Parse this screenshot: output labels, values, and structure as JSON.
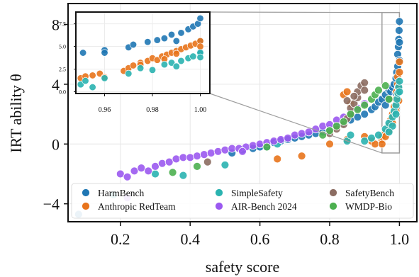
{
  "chart_data": {
    "type": "scatter",
    "xlabel": "safety score",
    "ylabel": "IRT ability θ",
    "xlim": [
      0.05,
      1.05
    ],
    "ylim": [
      -5.2,
      9.4
    ],
    "xticks": [
      0.2,
      0.4,
      0.6,
      0.8,
      1.0
    ],
    "xtick_labels": [
      "0.2",
      "0.4",
      "0.6",
      "0.8",
      "1.0"
    ],
    "yticks": [
      -4,
      0,
      4,
      8
    ],
    "ytick_labels": [
      "−4",
      "0",
      "4",
      "8"
    ],
    "grid": true,
    "legend": "bottom",
    "series": [
      {
        "name": "HarmBench",
        "color": "#1f77b4",
        "points": [
          [
            0.08,
            -4.7
          ],
          [
            0.52,
            -0.6
          ],
          [
            0.55,
            -0.4
          ],
          [
            0.58,
            -0.3
          ],
          [
            0.6,
            -0.2
          ],
          [
            0.62,
            -0.2
          ],
          [
            0.64,
            0.1
          ],
          [
            0.66,
            0.2
          ],
          [
            0.68,
            0.3
          ],
          [
            0.7,
            0.4
          ],
          [
            0.72,
            0.5
          ],
          [
            0.74,
            0.6
          ],
          [
            0.76,
            0.7
          ],
          [
            0.78,
            0.8
          ],
          [
            0.8,
            1.0
          ],
          [
            0.82,
            1.2
          ],
          [
            0.84,
            1.4
          ],
          [
            0.86,
            1.6
          ],
          [
            0.88,
            1.8
          ],
          [
            0.9,
            2.0
          ],
          [
            0.92,
            2.3
          ],
          [
            0.93,
            2.5
          ],
          [
            0.94,
            2.8
          ],
          [
            0.95,
            3.0
          ],
          [
            0.96,
            3.3
          ],
          [
            0.97,
            3.6
          ],
          [
            0.975,
            3.5
          ],
          [
            0.98,
            3.8
          ],
          [
            0.985,
            4.0
          ],
          [
            0.99,
            4.4
          ],
          [
            0.99,
            3.4
          ],
          [
            0.992,
            4.8
          ],
          [
            0.995,
            5.2
          ],
          [
            0.995,
            6.0
          ],
          [
            0.997,
            6.5
          ],
          [
            0.998,
            7.0
          ],
          [
            0.999,
            7.6
          ],
          [
            1.0,
            8.2
          ],
          [
            1.0,
            6.8
          ],
          [
            1.0,
            5.6
          ],
          [
            0.96,
            2.6
          ],
          [
            0.97,
            3.0
          ]
        ]
      },
      {
        "name": "Anthropic RedTeam",
        "color": "#e8741c",
        "points": [
          [
            0.65,
            -1.0
          ],
          [
            0.72,
            -0.8
          ],
          [
            0.8,
            0.0
          ],
          [
            0.85,
            0.3
          ],
          [
            0.9,
            0.5
          ],
          [
            0.92,
            0.2
          ],
          [
            0.93,
            0.0
          ],
          [
            0.95,
            0.3
          ],
          [
            0.95,
            0.5
          ],
          [
            0.96,
            0.8
          ],
          [
            0.97,
            1.2
          ],
          [
            0.975,
            1.6
          ],
          [
            0.98,
            2.0
          ],
          [
            0.985,
            2.5
          ],
          [
            0.99,
            3.0
          ],
          [
            0.99,
            2.2
          ],
          [
            0.992,
            3.5
          ],
          [
            0.995,
            4.0
          ],
          [
            0.995,
            4.5
          ],
          [
            0.997,
            3.8
          ],
          [
            0.998,
            2.9
          ],
          [
            1.0,
            5.5
          ],
          [
            1.0,
            4.8
          ],
          [
            0.98,
            1.4
          ],
          [
            0.97,
            0.9
          ],
          [
            0.84,
            3.3
          ],
          [
            0.85,
            3.5
          ],
          [
            0.86,
            2.7
          ],
          [
            0.96,
            0.5
          ],
          [
            0.95,
            0.0
          ]
        ]
      },
      {
        "name": "SimpleSafety",
        "color": "#2ab3b0",
        "points": [
          [
            0.18,
            -3.4
          ],
          [
            0.3,
            -2.0
          ],
          [
            0.38,
            -2.1
          ],
          [
            0.5,
            -1.4
          ],
          [
            0.65,
            0.0
          ],
          [
            0.85,
            0.2
          ],
          [
            0.86,
            0.6
          ],
          [
            0.9,
            0.2
          ],
          [
            0.92,
            0.4
          ],
          [
            0.94,
            0.6
          ],
          [
            0.96,
            1.0
          ],
          [
            0.97,
            1.4
          ],
          [
            0.98,
            1.8
          ],
          [
            0.985,
            2.2
          ],
          [
            0.99,
            2.6
          ],
          [
            0.993,
            3.0
          ],
          [
            0.996,
            3.4
          ],
          [
            0.998,
            3.8
          ],
          [
            1.0,
            4.2
          ],
          [
            1.0,
            3.5
          ],
          [
            0.99,
            2.0
          ],
          [
            0.98,
            1.2
          ],
          [
            0.97,
            0.8
          ]
        ]
      },
      {
        "name": "AIR-Bench 2024",
        "color": "#9b59f0",
        "points": [
          [
            0.2,
            -2.0
          ],
          [
            0.22,
            -2.2
          ],
          [
            0.24,
            -1.8
          ],
          [
            0.26,
            -1.6
          ],
          [
            0.28,
            -1.8
          ],
          [
            0.3,
            -1.5
          ],
          [
            0.32,
            -1.3
          ],
          [
            0.34,
            -1.2
          ],
          [
            0.36,
            -1.0
          ],
          [
            0.38,
            -0.9
          ],
          [
            0.4,
            -0.9
          ],
          [
            0.42,
            -0.8
          ],
          [
            0.44,
            -0.7
          ],
          [
            0.46,
            -0.6
          ],
          [
            0.48,
            -0.5
          ],
          [
            0.5,
            -0.4
          ],
          [
            0.52,
            -0.3
          ],
          [
            0.54,
            -0.3
          ],
          [
            0.56,
            -0.2
          ],
          [
            0.58,
            -0.1
          ],
          [
            0.6,
            0.0
          ],
          [
            0.62,
            0.1
          ],
          [
            0.64,
            0.2
          ],
          [
            0.66,
            0.3
          ],
          [
            0.68,
            0.4
          ],
          [
            0.7,
            0.6
          ],
          [
            0.72,
            0.7
          ],
          [
            0.74,
            0.8
          ],
          [
            0.76,
            1.0
          ],
          [
            0.78,
            1.2
          ],
          [
            0.8,
            1.3
          ],
          [
            0.82,
            1.6
          ],
          [
            0.84,
            1.8
          ],
          [
            0.86,
            2.1
          ],
          [
            0.88,
            2.4
          ],
          [
            0.9,
            2.7
          ],
          [
            0.22,
            -3.6
          ],
          [
            0.55,
            -0.5
          ]
        ]
      },
      {
        "name": "SafetyBench",
        "color": "#8c6d62",
        "points": [
          [
            0.45,
            -1.2
          ],
          [
            0.8,
            0.7
          ],
          [
            0.82,
            1.0
          ],
          [
            0.84,
            1.3
          ],
          [
            0.85,
            1.7
          ],
          [
            0.86,
            2.0
          ],
          [
            0.86,
            2.4
          ],
          [
            0.87,
            2.7
          ],
          [
            0.88,
            3.1
          ],
          [
            0.88,
            3.5
          ],
          [
            0.89,
            3.9
          ],
          [
            0.9,
            4.1
          ],
          [
            0.9,
            3.6
          ],
          [
            0.87,
            3.2
          ],
          [
            0.85,
            2.9
          ]
        ]
      },
      {
        "name": "WMDP-Bio",
        "color": "#4cb050",
        "points": [
          [
            0.35,
            -1.9
          ],
          [
            0.42,
            -1.5
          ],
          [
            0.62,
            -0.2
          ],
          [
            0.78,
            0.6
          ],
          [
            0.8,
            0.9
          ],
          [
            0.82,
            1.2
          ],
          [
            0.84,
            1.5
          ],
          [
            0.86,
            2.0
          ],
          [
            0.88,
            2.3
          ],
          [
            0.9,
            2.6
          ],
          [
            0.92,
            3.0
          ],
          [
            0.93,
            3.3
          ],
          [
            0.94,
            3.6
          ],
          [
            0.96,
            3.9
          ],
          [
            0.97,
            3.0
          ]
        ]
      }
    ],
    "inset": {
      "xlim": [
        0.948,
        1.004
      ],
      "ylim": [
        -0.2,
        8.8
      ],
      "xticks": [
        0.96,
        0.98,
        1.0
      ],
      "xtick_labels": [
        "0.96",
        "0.98",
        "1.00"
      ],
      "yticks": [
        0.0,
        2.5,
        5.0,
        7.5
      ],
      "ytick_labels": [
        "0.0",
        "2.5",
        "5.0",
        "7.5"
      ],
      "zoom_region": {
        "x": [
          0.95,
          1.0
        ],
        "y": [
          -0.6,
          8.8
        ]
      },
      "series": [
        {
          "name": "HarmBench",
          "points": [
            [
              0.951,
              4.3
            ],
            [
              0.96,
              4.6
            ],
            [
              0.96,
              4.3
            ],
            [
              0.97,
              4.9
            ],
            [
              0.972,
              5.2
            ],
            [
              0.978,
              5.5
            ],
            [
              0.982,
              5.7
            ],
            [
              0.985,
              5.9
            ],
            [
              0.988,
              6.3
            ],
            [
              0.99,
              5.6
            ],
            [
              0.992,
              6.5
            ],
            [
              0.995,
              6.9
            ],
            [
              0.997,
              7.2
            ],
            [
              0.999,
              7.5
            ],
            [
              1.0,
              8.1
            ],
            [
              1.0,
              5.6
            ],
            [
              1.0,
              4.4
            ]
          ]
        },
        {
          "name": "Anthropic RedTeam",
          "points": [
            [
              0.95,
              1.5
            ],
            [
              0.952,
              1.7
            ],
            [
              0.955,
              1.8
            ],
            [
              0.958,
              2.0
            ],
            [
              0.96,
              1.6
            ],
            [
              0.968,
              2.3
            ],
            [
              0.97,
              2.6
            ],
            [
              0.972,
              2.9
            ],
            [
              0.975,
              3.2
            ],
            [
              0.978,
              3.4
            ],
            [
              0.98,
              3.7
            ],
            [
              0.982,
              3.5
            ],
            [
              0.984,
              3.9
            ],
            [
              0.986,
              4.1
            ],
            [
              0.988,
              4.3
            ],
            [
              0.99,
              4.5
            ],
            [
              0.992,
              4.7
            ],
            [
              0.994,
              4.9
            ],
            [
              0.996,
              5.1
            ],
            [
              0.998,
              5.3
            ],
            [
              1.0,
              5.6
            ],
            [
              1.0,
              5.0
            ],
            [
              0.99,
              4.2
            ],
            [
              0.975,
              3.0
            ],
            [
              0.985,
              3.6
            ]
          ]
        },
        {
          "name": "SimpleSafety",
          "points": [
            [
              0.95,
              0.8
            ],
            [
              0.952,
              1.2
            ],
            [
              0.955,
              0.5
            ],
            [
              0.96,
              1.5
            ],
            [
              0.97,
              2.0
            ],
            [
              0.975,
              2.6
            ],
            [
              0.98,
              2.4
            ],
            [
              0.985,
              3.0
            ],
            [
              0.988,
              3.2
            ],
            [
              0.99,
              2.8
            ],
            [
              0.992,
              3.4
            ],
            [
              0.995,
              3.7
            ],
            [
              0.997,
              3.9
            ],
            [
              1.0,
              4.3
            ],
            [
              1.0,
              3.8
            ]
          ]
        }
      ]
    },
    "legend_entries": [
      {
        "label": "HarmBench",
        "color": "#1f77b4"
      },
      {
        "label": "SimpleSafety",
        "color": "#2ab3b0"
      },
      {
        "label": "SafetyBench",
        "color": "#8c6d62"
      },
      {
        "label": "Anthropic RedTeam",
        "color": "#e8741c"
      },
      {
        "label": "AIR-Bench 2024",
        "color": "#9b59f0"
      },
      {
        "label": "WMDP-Bio",
        "color": "#4cb050"
      }
    ]
  }
}
